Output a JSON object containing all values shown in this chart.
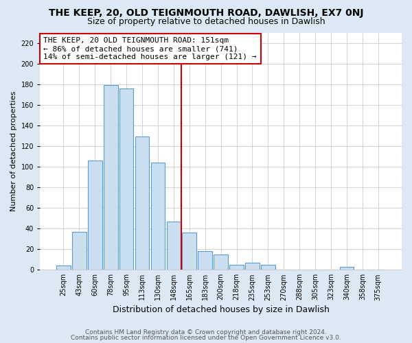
{
  "title": "THE KEEP, 20, OLD TEIGNMOUTH ROAD, DAWLISH, EX7 0NJ",
  "subtitle": "Size of property relative to detached houses in Dawlish",
  "xlabel": "Distribution of detached houses by size in Dawlish",
  "ylabel": "Number of detached properties",
  "bin_labels": [
    "25sqm",
    "43sqm",
    "60sqm",
    "78sqm",
    "95sqm",
    "113sqm",
    "130sqm",
    "148sqm",
    "165sqm",
    "183sqm",
    "200sqm",
    "218sqm",
    "235sqm",
    "253sqm",
    "270sqm",
    "288sqm",
    "305sqm",
    "323sqm",
    "340sqm",
    "358sqm",
    "375sqm"
  ],
  "bar_heights": [
    4,
    37,
    106,
    179,
    176,
    129,
    104,
    47,
    36,
    18,
    15,
    5,
    7,
    5,
    0,
    0,
    0,
    0,
    3,
    0,
    0
  ],
  "bar_color": "#c9dff0",
  "bar_edge_color": "#5b9bd5",
  "vline_x": 7.5,
  "vline_color": "#cc0000",
  "annotation_text": "THE KEEP, 20 OLD TEIGNMOUTH ROAD: 151sqm\n← 86% of detached houses are smaller (741)\n14% of semi-detached houses are larger (121) →",
  "annotation_box_color": "white",
  "annotation_box_edge": "#cc0000",
  "ylim": [
    0,
    230
  ],
  "yticks": [
    0,
    20,
    40,
    60,
    80,
    100,
    120,
    140,
    160,
    180,
    200,
    220
  ],
  "footer1": "Contains HM Land Registry data © Crown copyright and database right 2024.",
  "footer2": "Contains public sector information licensed under the Open Government Licence v3.0.",
  "fig_background_color": "#dce9f5",
  "plot_bg_color": "#ffffff",
  "grid_color": "#cccccc",
  "title_fontsize": 10,
  "subtitle_fontsize": 9,
  "xlabel_fontsize": 9,
  "ylabel_fontsize": 8,
  "tick_fontsize": 7,
  "annot_fontsize": 8,
  "footer_fontsize": 6.5
}
